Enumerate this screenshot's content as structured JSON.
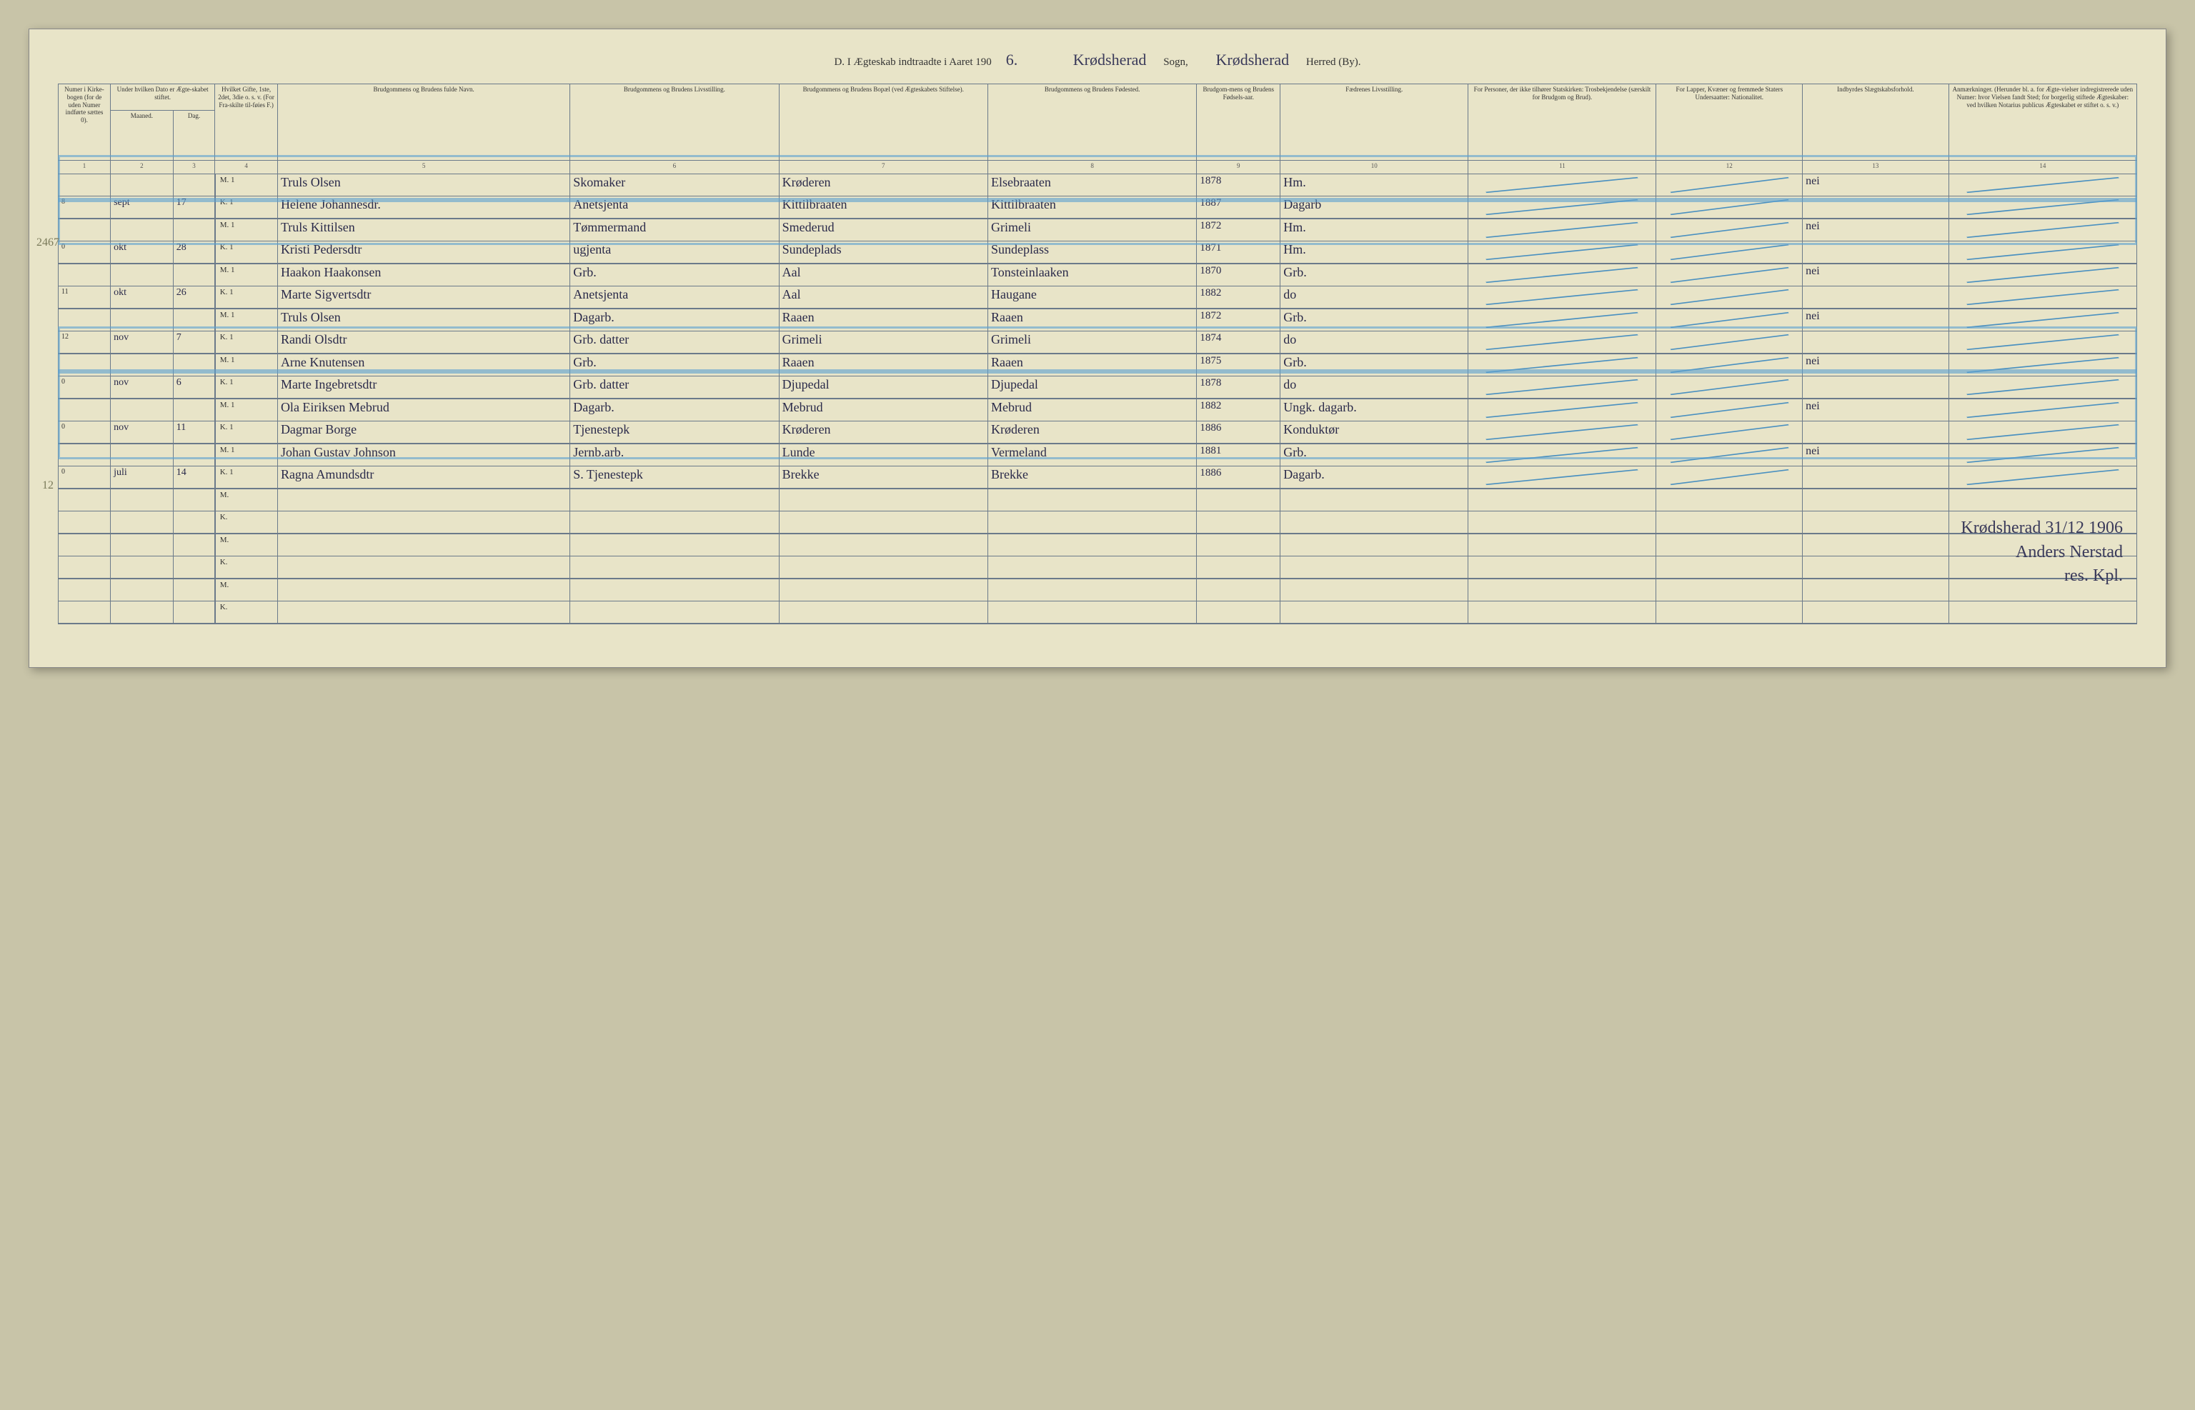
{
  "header": {
    "title_prefix": "D.   I Ægteskab indtraadte i Aaret 190",
    "year_suffix": "6.",
    "sogn_hand": "Krødsherad",
    "sogn_label": "Sogn,",
    "herred_hand": "Krødsherad",
    "herred_label": "Herred (By)."
  },
  "columns": {
    "c1": "Numer i Kirke-bogen (for de uden Numer indførte sættes 0).",
    "c2a": "Under hvilken Dato er Ægte-skabet stiftet.",
    "c2_m": "Maaned.",
    "c2_d": "Dag.",
    "c3": "Hvilket Gifte, 1ste, 2det, 3die o. s. v. (For Fra-skilte til-føies F.)",
    "c4": "Brudgommens og Brudens fulde Navn.",
    "c5": "Brudgommens og Brudens Livsstilling.",
    "c6": "Brudgommens og Brudens Bopæl (ved Ægteskabets Stiftelse).",
    "c7": "Brudgommens og Brudens Fødested.",
    "c8": "Brudgom-mens og Brudens Fødsels-aar.",
    "c9": "Fædrenes Livsstilling.",
    "c10": "For Personer, der ikke tilhører Statskirken: Trosbekjendelse (særskilt for Brudgom og Brud).",
    "c11": "For Lapper, Kvæner og fremmede Staters Undersaatter: Nationalitet.",
    "c12": "Indbyrdes Slægtskabsforhold.",
    "c13": "Anmærkninger. (Herunder bl. a. for Ægte-vielser indregistrerede uden Numer: hvor Vielsen fandt Sted; for borgerlig stiftede Ægteskaber: ved hvilken Notarius publicus Ægteskabet er stiftet o. s. v.)"
  },
  "colnums": [
    "1",
    "2",
    "3",
    "4",
    "5",
    "6",
    "7",
    "8",
    "9",
    "10",
    "11",
    "12",
    "13",
    "14"
  ],
  "rows": [
    {
      "num": "",
      "month": "",
      "day": "",
      "mk": "M.",
      "gifte": "1",
      "name": "Truls Olsen",
      "stilling": "Skomaker",
      "bopael": "Krøderen",
      "fodested": "Elsebraaten",
      "aar": "1878",
      "faedre": "Hm.",
      "rel": "",
      "nat": "",
      "slaegt": "nei",
      "anm": ""
    },
    {
      "num": "8",
      "month": "sept",
      "day": "17",
      "mk": "K.",
      "gifte": "1",
      "name": "Helene Johannesdr.",
      "stilling": "Anetsjenta",
      "bopael": "Kittilbraaten",
      "fodested": "Kittilbraaten",
      "aar": "1887",
      "faedre": "Dagarb",
      "rel": "",
      "nat": "",
      "slaegt": "",
      "anm": ""
    },
    {
      "num": "",
      "month": "",
      "day": "",
      "mk": "M.",
      "gifte": "1",
      "name": "Truls Kittilsen",
      "stilling": "Tømmermand",
      "bopael": "Smederud",
      "fodested": "Grimeli",
      "aar": "1872",
      "faedre": "Hm.",
      "rel": "",
      "nat": "",
      "slaegt": "nei",
      "anm": ""
    },
    {
      "num": "0",
      "month": "okt",
      "day": "28",
      "mk": "K.",
      "gifte": "1",
      "name": "Kristi Pedersdtr",
      "stilling": "ugjenta",
      "bopael": "Sundeplads",
      "fodested": "Sundeplass",
      "aar": "1871",
      "faedre": "Hm.",
      "rel": "",
      "nat": "",
      "slaegt": "",
      "anm": ""
    },
    {
      "num": "",
      "month": "",
      "day": "",
      "mk": "M.",
      "gifte": "1",
      "name": "Haakon Haakonsen",
      "stilling": "Grb.",
      "bopael": "Aal",
      "fodested": "Tonsteinlaaken",
      "aar": "1870",
      "faedre": "Grb.",
      "rel": "",
      "nat": "",
      "slaegt": "nei",
      "anm": ""
    },
    {
      "num": "11",
      "month": "okt",
      "day": "26",
      "mk": "K.",
      "gifte": "1",
      "name": "Marte Sigvertsdtr",
      "stilling": "Anetsjenta",
      "bopael": "Aal",
      "fodested": "Haugane",
      "aar": "1882",
      "faedre": "do",
      "rel": "",
      "nat": "",
      "slaegt": "",
      "anm": ""
    },
    {
      "num": "",
      "month": "",
      "day": "",
      "mk": "M.",
      "gifte": "1",
      "name": "Truls Olsen",
      "stilling": "Dagarb.",
      "bopael": "Raaen",
      "fodested": "Raaen",
      "aar": "1872",
      "faedre": "Grb.",
      "rel": "",
      "nat": "",
      "slaegt": "nei",
      "anm": ""
    },
    {
      "num": "12",
      "month": "nov",
      "day": "7",
      "mk": "K.",
      "gifte": "1",
      "name": "Randi Olsdtr",
      "stilling": "Grb. datter",
      "bopael": "Grimeli",
      "fodested": "Grimeli",
      "aar": "1874",
      "faedre": "do",
      "rel": "",
      "nat": "",
      "slaegt": "",
      "anm": ""
    },
    {
      "num": "",
      "month": "",
      "day": "",
      "mk": "M.",
      "gifte": "1",
      "name": "Arne Knutensen",
      "stilling": "Grb.",
      "bopael": "Raaen",
      "fodested": "Raaen",
      "aar": "1875",
      "faedre": "Grb.",
      "rel": "",
      "nat": "",
      "slaegt": "nei",
      "anm": ""
    },
    {
      "num": "0",
      "month": "nov",
      "day": "6",
      "mk": "K.",
      "gifte": "1",
      "name": "Marte Ingebretsdtr",
      "stilling": "Grb. datter",
      "bopael": "Djupedal",
      "fodested": "Djupedal",
      "aar": "1878",
      "faedre": "do",
      "rel": "",
      "nat": "",
      "slaegt": "",
      "anm": ""
    },
    {
      "num": "",
      "month": "",
      "day": "",
      "mk": "M.",
      "gifte": "1",
      "name": "Ola Eiriksen Mebrud",
      "stilling": "Dagarb.",
      "bopael": "Mebrud",
      "fodested": "Mebrud",
      "aar": "1882",
      "faedre": "Ungk. dagarb.",
      "rel": "",
      "nat": "",
      "slaegt": "nei",
      "anm": ""
    },
    {
      "num": "0",
      "month": "nov",
      "day": "11",
      "mk": "K.",
      "gifte": "1",
      "name": "Dagmar Borge",
      "stilling": "Tjenestepk",
      "bopael": "Krøderen",
      "fodested": "Krøderen",
      "aar": "1886",
      "faedre": "Konduktør",
      "rel": "",
      "nat": "",
      "slaegt": "",
      "anm": ""
    },
    {
      "num": "",
      "month": "",
      "day": "",
      "mk": "M.",
      "gifte": "1",
      "name": "Johan Gustav Johnson",
      "stilling": "Jernb.arb.",
      "bopael": "Lunde",
      "fodested": "Vermeland",
      "aar": "1881",
      "faedre": "Grb.",
      "rel": "",
      "nat": "",
      "slaegt": "nei",
      "anm": ""
    },
    {
      "num": "0",
      "month": "juli",
      "day": "14",
      "mk": "K.",
      "gifte": "1",
      "name": "Ragna Amundsdtr",
      "stilling": "S. Tjenestepk",
      "bopael": "Brekke",
      "fodested": "Brekke",
      "aar": "1886",
      "faedre": "Dagarb.",
      "rel": "",
      "nat": "",
      "slaegt": "",
      "anm": ""
    },
    {
      "num": "",
      "month": "",
      "day": "",
      "mk": "M.",
      "gifte": "",
      "name": "",
      "stilling": "",
      "bopael": "",
      "fodested": "",
      "aar": "",
      "faedre": "",
      "rel": "",
      "nat": "",
      "slaegt": "",
      "anm": ""
    },
    {
      "num": "",
      "month": "",
      "day": "",
      "mk": "K.",
      "gifte": "",
      "name": "",
      "stilling": "",
      "bopael": "",
      "fodested": "",
      "aar": "",
      "faedre": "",
      "rel": "",
      "nat": "",
      "slaegt": "",
      "anm": ""
    },
    {
      "num": "",
      "month": "",
      "day": "",
      "mk": "M.",
      "gifte": "",
      "name": "",
      "stilling": "",
      "bopael": "",
      "fodested": "",
      "aar": "",
      "faedre": "",
      "rel": "",
      "nat": "",
      "slaegt": "",
      "anm": ""
    },
    {
      "num": "",
      "month": "",
      "day": "",
      "mk": "K.",
      "gifte": "",
      "name": "",
      "stilling": "",
      "bopael": "",
      "fodested": "",
      "aar": "",
      "faedre": "",
      "rel": "",
      "nat": "",
      "slaegt": "",
      "anm": ""
    },
    {
      "num": "",
      "month": "",
      "day": "",
      "mk": "M.",
      "gifte": "",
      "name": "",
      "stilling": "",
      "bopael": "",
      "fodested": "",
      "aar": "",
      "faedre": "",
      "rel": "",
      "nat": "",
      "slaegt": "",
      "anm": ""
    },
    {
      "num": "",
      "month": "",
      "day": "",
      "mk": "K.",
      "gifte": "",
      "name": "",
      "stilling": "",
      "bopael": "",
      "fodested": "",
      "aar": "",
      "faedre": "",
      "rel": "",
      "nat": "",
      "slaegt": "",
      "anm": ""
    }
  ],
  "margin_notes": {
    "n1": "2467",
    "n2": "12"
  },
  "signature": {
    "line1": "Krødsherad 31/12 1906",
    "line2": "Anders Nerstad",
    "line3": "res. Kpl."
  },
  "styling": {
    "page_bg": "#e8e4c8",
    "border_color": "#6b7a8a",
    "ink_color": "#2a2a4a",
    "highlight_color": "#5aa0d0",
    "header_fontsize": 9,
    "script_fontsize": 18,
    "diagonal_stroke": "#4a90c0",
    "diagonal_width": 2
  }
}
